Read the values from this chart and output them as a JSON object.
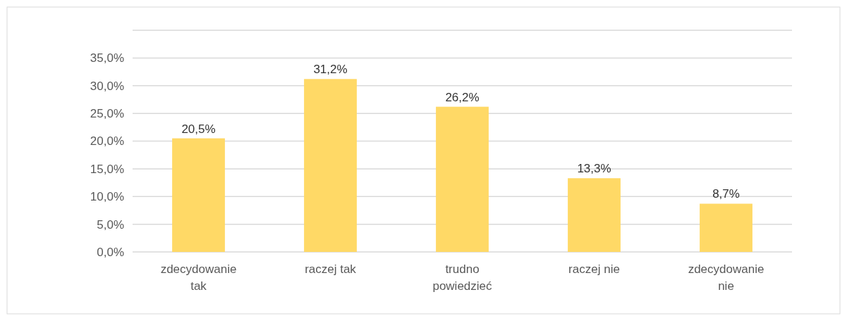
{
  "chart_data": {
    "type": "bar",
    "categories": [
      "zdecydowanie tak",
      "raczej tak",
      "trudno powiedzieć",
      "raczej nie",
      "zdecydowanie nie"
    ],
    "values": [
      20.5,
      31.2,
      26.2,
      13.3,
      8.7
    ],
    "color": "#ffd966",
    "value_labels": [
      "20,5%",
      "31,2%",
      "26,2%",
      "13,3%",
      "8,7%"
    ],
    "ylim": [
      0,
      40
    ],
    "yticks": [
      {
        "value": 0,
        "label": "0,0%"
      },
      {
        "value": 5,
        "label": "5,0%"
      },
      {
        "value": 10,
        "label": "10,0%"
      },
      {
        "value": 15,
        "label": "15,0%"
      },
      {
        "value": 20,
        "label": "20,0%"
      },
      {
        "value": 25,
        "label": "25,0%"
      },
      {
        "value": 30,
        "label": "30,0%"
      },
      {
        "value": 35,
        "label": "35,0%"
      },
      {
        "value": 40,
        "label": null
      }
    ],
    "grid": true
  }
}
